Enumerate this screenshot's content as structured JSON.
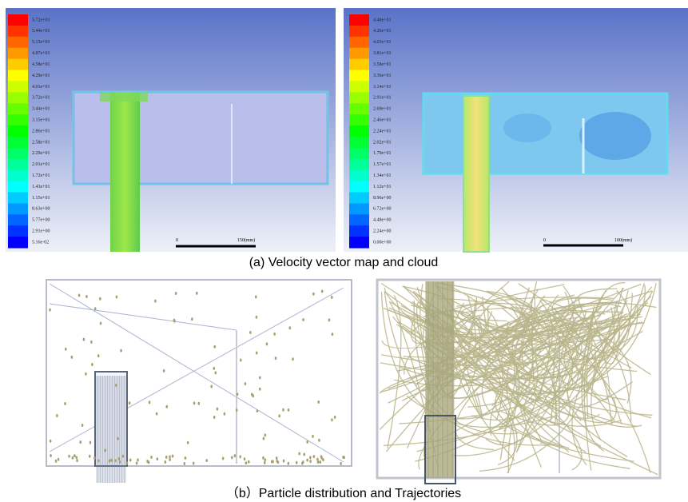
{
  "figure": {
    "panel_a": {
      "left": {
        "colorbar": [
          "5.72e+01",
          "5.44e+01",
          "5.15e+01",
          "4.87e+01",
          "4.58e+01",
          "4.29e+01",
          "4.01e+01",
          "3.72e+01",
          "3.44e+01",
          "3.15e+01",
          "2.86e+01",
          "2.58e+01",
          "2.29e+01",
          "2.01e+01",
          "1.72e+01",
          "1.43e+01",
          "1.15e+01",
          "8.63e+00",
          "5.77e+00",
          "2.91e+00",
          "5.16e-02"
        ],
        "scale_bar": [
          "0",
          "150(mm)"
        ]
      },
      "right": {
        "colorbar": [
          "4.48e+01",
          "4.26e+01",
          "4.03e+01",
          "3.81e+01",
          "3.58e+01",
          "3.36e+01",
          "3.14e+01",
          "2.91e+01",
          "2.69e+01",
          "2.46e+01",
          "2.24e+01",
          "2.02e+01",
          "1.79e+01",
          "1.57e+01",
          "1.34e+01",
          "1.12e+01",
          "8.96e+00",
          "6.72e+00",
          "4.48e+00",
          "2.24e+00",
          "0.00e+00"
        ],
        "scale_bar": [
          "0",
          "100(mm)"
        ]
      },
      "caption": "(a) Velocity vector map and cloud"
    },
    "panel_b": {
      "caption": "（b）Particle distribution and Trajectories"
    }
  }
}
